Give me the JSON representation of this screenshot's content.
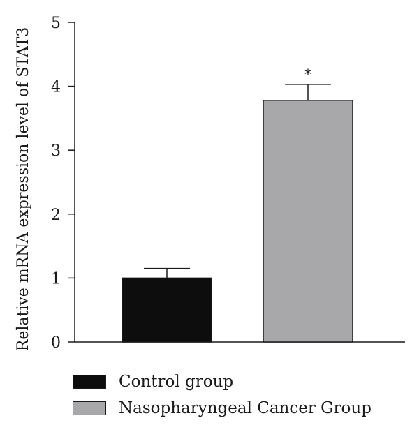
{
  "chart_data": {
    "type": "bar",
    "title": "",
    "xlabel": "",
    "ylabel": "Relative mRNA expression level of STAT3",
    "ylim": [
      0,
      5
    ],
    "yticks": [
      "0",
      "1",
      "2",
      "3",
      "4",
      "5"
    ],
    "categories": [
      "Control group",
      "Nasopharyngeal Cancer Group"
    ],
    "values": [
      1.0,
      3.78
    ],
    "error_upper": [
      0.15,
      0.25
    ],
    "bar_colors": [
      "#0d0d0d",
      "#a8a8ab"
    ],
    "annotations": [
      "",
      "*"
    ],
    "legend": {
      "placement": "bottom",
      "items": [
        {
          "label": "Control group",
          "color": "#0d0d0d"
        },
        {
          "label": "Nasopharyngeal Cancer Group",
          "color": "#a8a8ab"
        }
      ]
    },
    "grid": false
  }
}
